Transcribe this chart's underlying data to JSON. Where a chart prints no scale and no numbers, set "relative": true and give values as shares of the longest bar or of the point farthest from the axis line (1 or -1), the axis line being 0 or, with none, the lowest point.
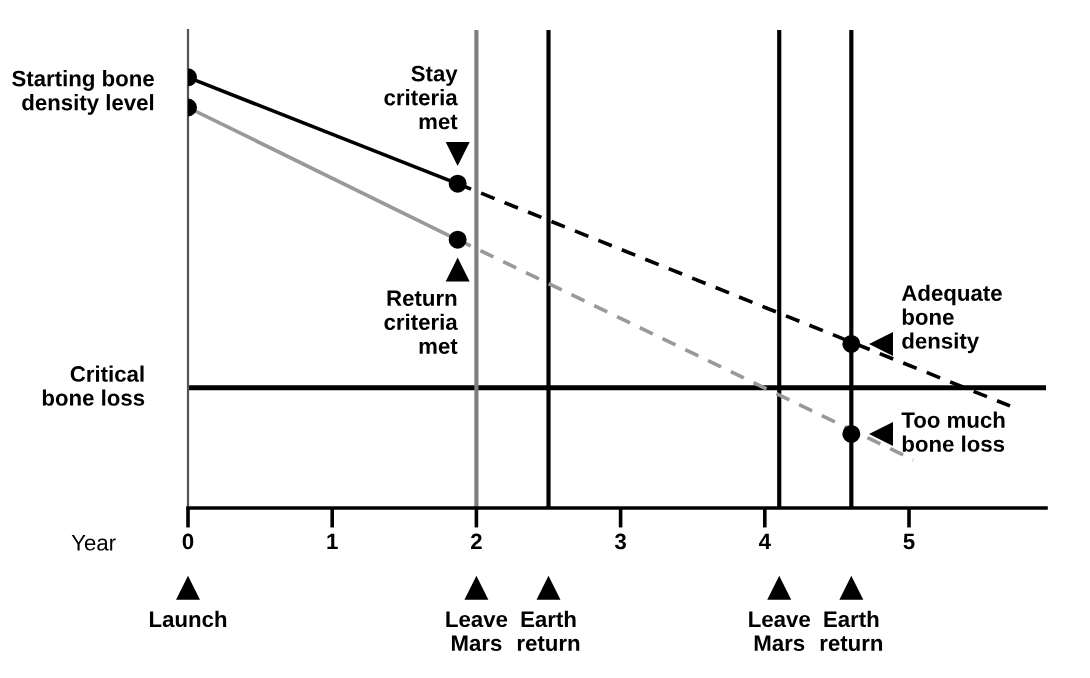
{
  "chart_data": {
    "type": "line",
    "relative": true,
    "xlabel": "Year",
    "xlim": [
      0,
      5.95
    ],
    "xticks": [
      0,
      1,
      2,
      3,
      4,
      5
    ],
    "tick_labels": "x",
    "grid": false,
    "legend": false,
    "series": [
      {
        "color": "#000000",
        "x": [
          0,
          1.87
        ],
        "values": [
          1.0,
          0.753
        ],
        "line_style": "solid"
      },
      {
        "color": "#000000",
        "x": [
          1.87,
          5.7
        ],
        "values": [
          0.753,
          0.237
        ],
        "line_style": "dashed"
      },
      {
        "color": "#999999",
        "x": [
          0,
          1.87
        ],
        "values": [
          0.93,
          0.623
        ],
        "line_style": "solid"
      },
      {
        "color": "#999999",
        "x": [
          1.87,
          5.03
        ],
        "values": [
          0.623,
          0.112
        ],
        "line_style": "dashed"
      },
      {
        "type": "scatter",
        "color": "#000000",
        "marker": "circle",
        "x": [
          0,
          1.87,
          4.6,
          0,
          1.87,
          4.6
        ],
        "values": [
          1.0,
          0.753,
          0.381,
          0.93,
          0.623,
          0.172
        ]
      }
    ],
    "ref_lines": [
      {
        "axis": "y",
        "value": 0.279,
        "label": "Critical\nbone loss",
        "color": "#000000"
      },
      {
        "axis": "x",
        "value": 2.0,
        "color": "#808080"
      },
      {
        "axis": "x",
        "value": 2.5,
        "color": "#000000"
      },
      {
        "axis": "x",
        "value": 4.1,
        "color": "#000000"
      },
      {
        "axis": "x",
        "value": 4.6,
        "color": "#000000"
      }
    ],
    "annotations": [
      {
        "text": "Starting bone\ndensity level",
        "x": 0,
        "y": 0.965
      },
      {
        "text": "Stay\ncriteria\nmet",
        "x": 1.87,
        "y": 0.753
      },
      {
        "text": "Return\ncriteria\nmet",
        "x": 1.87,
        "y": 0.623
      },
      {
        "text": "Adequate\nbone\ndensity",
        "x": 4.6,
        "y": 0.381
      },
      {
        "text": "Too much\nbone loss",
        "x": 4.6,
        "y": 0.172
      },
      "Launch",
      "Leave\nMars",
      "Earth\nreturn",
      "Leave\nMars",
      "Earth\nreturn"
    ]
  }
}
